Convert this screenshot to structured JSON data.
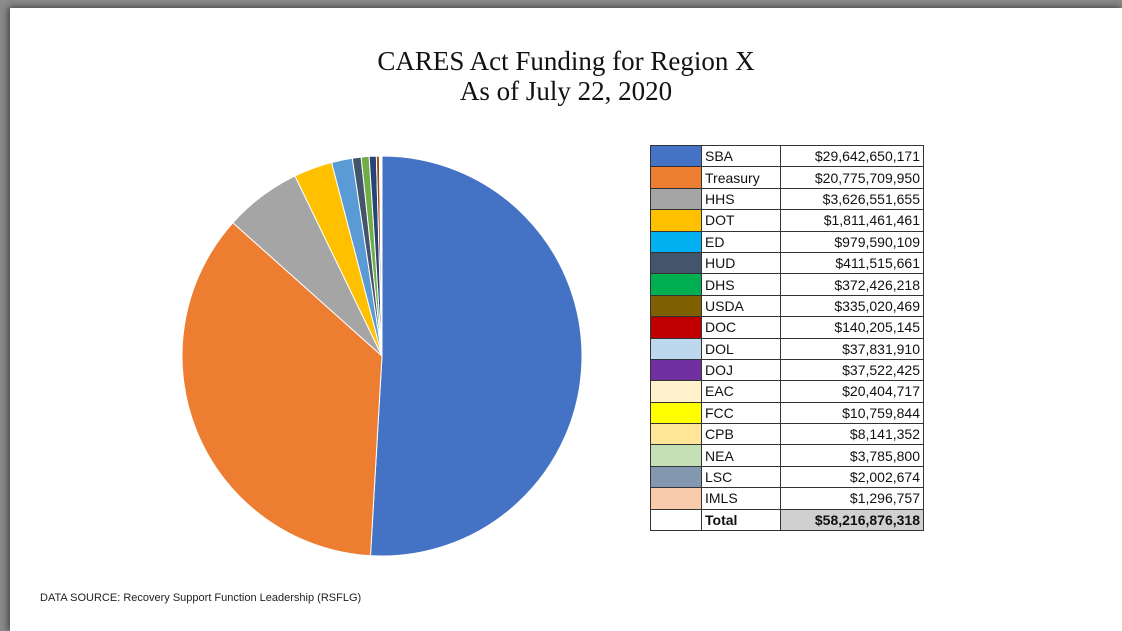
{
  "slide": {
    "title_line1": "CARES Act Funding for Region X",
    "title_line2": "As of July 22, 2020",
    "source": "DATA SOURCE: Recovery Support Function Leadership (RSFLG)"
  },
  "chart_data": {
    "type": "pie",
    "title": "CARES Act Funding for Region X\nAs of July 22, 2020",
    "categories": [
      "SBA",
      "Treasury",
      "HHS",
      "DOT",
      "ED",
      "HUD",
      "DHS",
      "USDA",
      "DOC",
      "DOL",
      "DOJ",
      "EAC",
      "FCC",
      "CPB",
      "NEA",
      "LSC",
      "IMLS"
    ],
    "values": [
      29642650171,
      20775709950,
      3626551655,
      1811461461,
      979590109,
      411515661,
      372426218,
      335020469,
      140205145,
      37831910,
      37522425,
      20404717,
      10759844,
      8141352,
      3785800,
      2002674,
      1296757
    ],
    "value_labels": [
      "$29,642,650,171",
      "$20,775,709,950",
      "$3,626,551,655",
      "$1,811,461,461",
      "$979,590,109",
      "$411,515,661",
      "$372,426,218",
      "$335,020,469",
      "$140,205,145",
      "$37,831,910",
      "$37,522,425",
      "$20,404,717",
      "$10,759,844",
      "$8,141,352",
      "$3,785,800",
      "$2,002,674",
      "$1,296,757"
    ],
    "colors": [
      "#4472c4",
      "#ed7d31",
      "#a5a5a5",
      "#ffc000",
      "#00b0f0",
      "#44546a",
      "#00b050",
      "#7f6000",
      "#c00000",
      "#bdd7ee",
      "#7030a0",
      "#fff2cc",
      "#ffff00",
      "#ffe699",
      "#c5e0b4",
      "#8497b0",
      "#f8cbad"
    ],
    "slice_colors": [
      "#4472c4",
      "#ed7d31",
      "#a5a5a5",
      "#ffc000",
      "#5b9bd5",
      "#44546a",
      "#70ad47",
      "#264478",
      "#9e480e",
      "#636363",
      "#997300",
      "#255e91",
      "#43682b",
      "#698ed0",
      "#f1975a",
      "#b7b7b7",
      "#ffcd33"
    ],
    "total_label": "Total",
    "total_value": "$58,216,876,318",
    "legend": "right-table"
  }
}
